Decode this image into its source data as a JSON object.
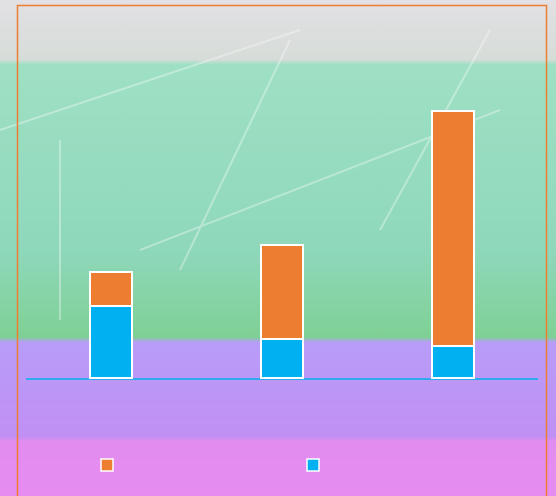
{
  "chart_data": {
    "type": "stacked-bar",
    "categories": [
      null,
      null,
      null
    ],
    "series": [
      {
        "color": "#00b0f0",
        "values": [
          72,
          39,
          32
        ]
      },
      {
        "color": "#ed7d31",
        "values": [
          34,
          94,
          235
        ]
      }
    ],
    "ylim": [
      0,
      373
    ]
  }
}
